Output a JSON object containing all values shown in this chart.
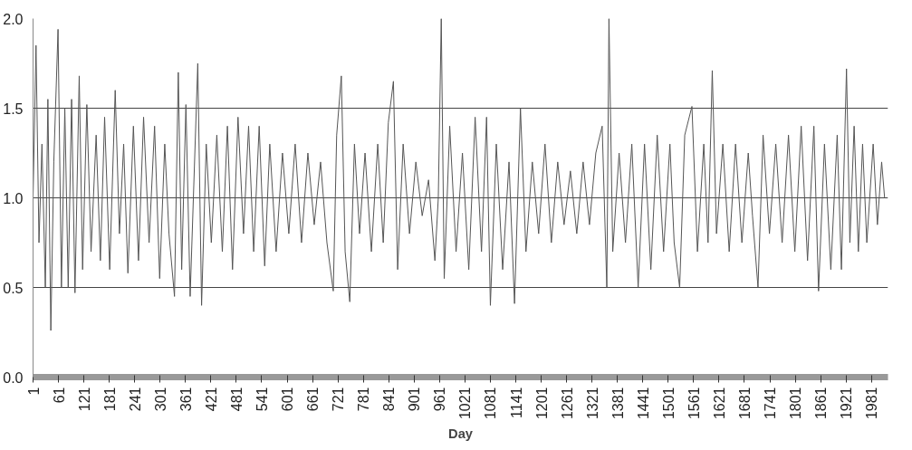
{
  "chart_data": {
    "type": "line",
    "xlabel": "Day",
    "xlim": [
      1,
      2020
    ],
    "xticks": [
      1,
      61,
      121,
      181,
      241,
      301,
      361,
      421,
      481,
      541,
      601,
      661,
      721,
      781,
      841,
      901,
      961,
      1021,
      1081,
      1141,
      1201,
      1261,
      1321,
      1381,
      1441,
      1501,
      1561,
      1621,
      1681,
      1741,
      1801,
      1861,
      1921,
      1981
    ],
    "ylim": [
      0,
      2.0
    ],
    "yticks": [
      {
        "value": 0,
        "label": "0.0"
      },
      {
        "value": 0.5,
        "label": "0.5"
      },
      {
        "value": 1.0,
        "label": "1.0"
      },
      {
        "value": 1.5,
        "label": "1.5"
      },
      {
        "value": 2.0,
        "label": "2.0"
      }
    ],
    "grid": "y",
    "series": [
      {
        "color": "#555555",
        "x": [
          1,
          8,
          15,
          22,
          30,
          36,
          43,
          50,
          60,
          68,
          76,
          84,
          92,
          100,
          110,
          118,
          128,
          138,
          150,
          160,
          170,
          182,
          195,
          205,
          215,
          225,
          238,
          250,
          262,
          275,
          288,
          300,
          312,
          322,
          335,
          344,
          352,
          362,
          372,
          390,
          399,
          410,
          422,
          435,
          448,
          460,
          472,
          485,
          498,
          510,
          522,
          535,
          548,
          560,
          575,
          590,
          605,
          620,
          635,
          650,
          665,
          680,
          695,
          710,
          718,
          729,
          738,
          749,
          760,
          772,
          785,
          800,
          815,
          828,
          840,
          852,
          862,
          875,
          890,
          905,
          920,
          935,
          950,
          958,
          965,
          972,
          985,
          1000,
          1015,
          1030,
          1045,
          1060,
          1072,
          1081,
          1095,
          1110,
          1125,
          1138,
          1152,
          1165,
          1180,
          1195,
          1210,
          1225,
          1240,
          1255,
          1270,
          1285,
          1300,
          1315,
          1330,
          1345,
          1356,
          1361,
          1370,
          1385,
          1400,
          1415,
          1430,
          1445,
          1460,
          1475,
          1490,
          1505,
          1515,
          1528,
          1540,
          1557,
          1570,
          1585,
          1595,
          1605,
          1615,
          1630,
          1645,
          1660,
          1675,
          1690,
          1700,
          1713,
          1725,
          1740,
          1755,
          1770,
          1785,
          1800,
          1815,
          1830,
          1845,
          1856,
          1870,
          1885,
          1900,
          1910,
          1922,
          1930,
          1940,
          1950,
          1960,
          1970,
          1985,
          1995,
          2005,
          2012
        ],
        "values": [
          1.0,
          1.85,
          0.75,
          1.3,
          0.5,
          1.55,
          0.26,
          1.2,
          1.94,
          0.5,
          1.5,
          0.5,
          1.55,
          0.47,
          1.68,
          0.6,
          1.52,
          0.7,
          1.35,
          0.65,
          1.45,
          0.6,
          1.6,
          0.8,
          1.3,
          0.58,
          1.4,
          0.65,
          1.45,
          0.75,
          1.4,
          0.55,
          1.3,
          0.8,
          0.45,
          1.7,
          0.6,
          1.52,
          0.45,
          1.75,
          0.4,
          1.3,
          0.75,
          1.35,
          0.7,
          1.4,
          0.6,
          1.45,
          0.8,
          1.4,
          0.7,
          1.4,
          0.62,
          1.3,
          0.7,
          1.25,
          0.8,
          1.3,
          0.75,
          1.25,
          0.85,
          1.2,
          0.75,
          0.48,
          1.35,
          1.68,
          0.7,
          0.42,
          1.3,
          0.8,
          1.25,
          0.7,
          1.3,
          0.75,
          1.42,
          1.65,
          0.6,
          1.3,
          0.8,
          1.2,
          0.9,
          1.1,
          0.65,
          1.0,
          2.0,
          0.55,
          1.4,
          0.7,
          1.25,
          0.6,
          1.45,
          0.7,
          1.45,
          0.4,
          1.3,
          0.6,
          1.2,
          0.41,
          1.5,
          0.7,
          1.2,
          0.8,
          1.3,
          0.75,
          1.2,
          0.85,
          1.15,
          0.8,
          1.2,
          0.85,
          1.25,
          1.4,
          0.5,
          2.0,
          0.7,
          1.25,
          0.75,
          1.3,
          0.5,
          1.3,
          0.6,
          1.35,
          0.7,
          1.3,
          0.75,
          0.5,
          1.35,
          1.51,
          0.7,
          1.3,
          0.75,
          1.71,
          0.8,
          1.3,
          0.7,
          1.3,
          0.75,
          1.25,
          0.9,
          0.5,
          1.35,
          0.8,
          1.3,
          0.75,
          1.35,
          0.7,
          1.4,
          0.65,
          1.4,
          0.48,
          1.3,
          0.6,
          1.35,
          0.6,
          1.72,
          0.75,
          1.4,
          0.7,
          1.3,
          0.75,
          1.3,
          0.85,
          1.2,
          1.0
        ]
      }
    ]
  }
}
